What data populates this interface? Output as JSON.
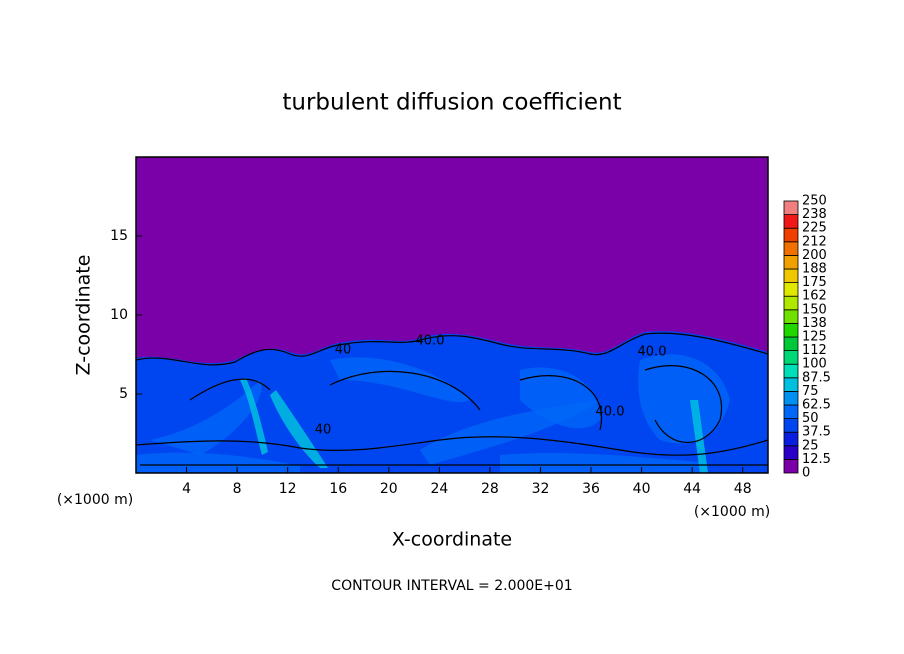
{
  "chart_data": {
    "type": "contour",
    "title": "turbulent diffusion coefficient",
    "x_label": "X-coordinate",
    "y_label": "Z-coordinate",
    "x_unit_label": "(×1000 m)",
    "footer": "CONTOUR INTERVAL = 2.000E+01",
    "xlim": [
      0,
      50
    ],
    "xticks": [
      4,
      8,
      12,
      16,
      20,
      24,
      28,
      32,
      36,
      40,
      44,
      48
    ],
    "ylim": [
      0,
      20
    ],
    "yticks": [
      5,
      10,
      15
    ],
    "contour_labels": [
      "40",
      "40.0",
      "40.0",
      "40.0",
      "40"
    ],
    "colorbar": {
      "levels": [
        0,
        12.5,
        25,
        37.5,
        50,
        62.5,
        75,
        87.5,
        100,
        112,
        125,
        138,
        150,
        162,
        175,
        188,
        200,
        212,
        225,
        238,
        250
      ],
      "colors": [
        "#7a00a8",
        "#2a00c8",
        "#0a1ee0",
        "#0046f0",
        "#0068f8",
        "#0090f0",
        "#00c0e0",
        "#00e0b8",
        "#00d878",
        "#00c838",
        "#20d800",
        "#70e000",
        "#b0e800",
        "#e0e800",
        "#f0c800",
        "#f0a000",
        "#f07000",
        "#f04000",
        "#f01818",
        "#f08080"
      ]
    }
  }
}
